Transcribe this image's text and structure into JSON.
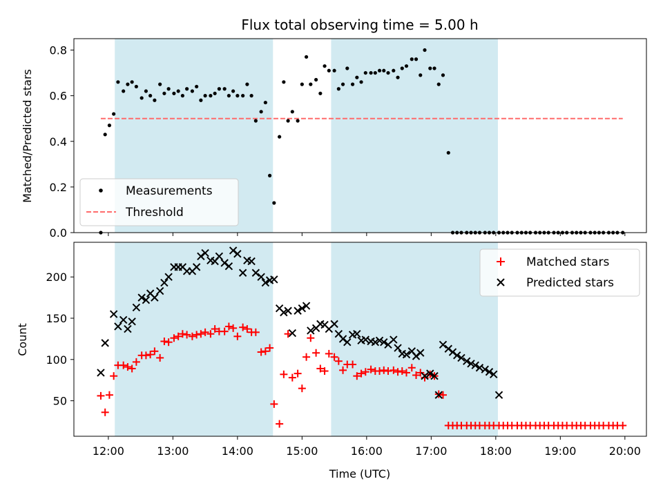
{
  "chart_data": [
    {
      "type": "scatter",
      "title": "Flux total observing time = 5.00 h",
      "xlabel": "",
      "ylabel": "Matched/Predicted stars",
      "xlim": [
        "11:28",
        "20:20"
      ],
      "ylim": [
        0,
        0.85
      ],
      "yticks": [
        0.0,
        0.2,
        0.4,
        0.6,
        0.8
      ],
      "grid": false,
      "legend_position": "lower-left",
      "shaded_intervals": [
        [
          "12:06",
          "14:33"
        ],
        [
          "15:27",
          "18:02"
        ]
      ],
      "shade_color": "#add8e6",
      "threshold": {
        "name": "Threshold",
        "value": 0.5,
        "x_start": "11:53",
        "x_end": "19:58",
        "color": "#ff6b6b"
      },
      "series": [
        {
          "name": "Measurements",
          "color": "#000000",
          "x": [
            "11:53",
            "11:57",
            "12:01",
            "12:05",
            "12:09",
            "12:14",
            "12:18",
            "12:22",
            "12:26",
            "12:31",
            "12:35",
            "12:39",
            "12:43",
            "12:48",
            "12:52",
            "12:56",
            "13:01",
            "13:05",
            "13:09",
            "13:13",
            "13:18",
            "13:22",
            "13:26",
            "13:30",
            "13:35",
            "13:39",
            "13:43",
            "13:48",
            "13:52",
            "13:56",
            "14:00",
            "14:05",
            "14:09",
            "14:13",
            "14:17",
            "14:22",
            "14:26",
            "14:30",
            "14:34",
            "14:39",
            "14:43",
            "14:47",
            "14:51",
            "14:56",
            "15:00",
            "15:04",
            "15:08",
            "15:13",
            "15:17",
            "15:21",
            "15:25",
            "15:30",
            "15:34",
            "15:38",
            "15:42",
            "15:47",
            "15:51",
            "15:55",
            "15:59",
            "16:04",
            "16:08",
            "16:12",
            "16:16",
            "16:20",
            "16:25",
            "16:29",
            "16:33",
            "16:37",
            "16:42",
            "16:46",
            "16:50",
            "16:54",
            "16:59",
            "17:03",
            "17:07",
            "17:11",
            "17:16",
            "17:20",
            "17:24",
            "17:28",
            "17:33",
            "17:37",
            "17:41",
            "17:45",
            "17:50",
            "17:54",
            "17:58",
            "18:03",
            "18:07",
            "18:11",
            "18:15",
            "18:20",
            "18:24",
            "18:28",
            "18:32",
            "18:37",
            "18:41",
            "18:45",
            "18:49",
            "18:54",
            "18:58",
            "19:02",
            "19:06",
            "19:11",
            "19:15",
            "19:19",
            "19:23",
            "19:28",
            "19:32",
            "19:36",
            "19:40",
            "19:45",
            "19:49",
            "19:53",
            "19:58"
          ],
          "y": [
            0.0,
            0.43,
            0.47,
            0.52,
            0.66,
            0.62,
            0.65,
            0.66,
            0.64,
            0.59,
            0.62,
            0.6,
            0.58,
            0.65,
            0.61,
            0.63,
            0.61,
            0.62,
            0.6,
            0.63,
            0.62,
            0.64,
            0.58,
            0.6,
            0.6,
            0.61,
            0.63,
            0.63,
            0.6,
            0.62,
            0.6,
            0.6,
            0.65,
            0.6,
            0.49,
            0.53,
            0.57,
            0.25,
            0.13,
            0.42,
            0.66,
            0.49,
            0.53,
            0.49,
            0.65,
            0.77,
            0.65,
            0.67,
            0.61,
            0.73,
            0.71,
            0.71,
            0.63,
            0.65,
            0.72,
            0.65,
            0.68,
            0.66,
            0.7,
            0.7,
            0.7,
            0.71,
            0.71,
            0.7,
            0.71,
            0.68,
            0.72,
            0.73,
            0.76,
            0.76,
            0.69,
            0.8,
            0.72,
            0.72,
            0.65,
            0.69,
            0.35,
            0.0,
            0.0,
            0.0,
            0.0,
            0.0,
            0.0,
            0.0,
            0.0,
            0.0,
            0.0,
            0.0,
            0.0,
            0.0,
            0.0,
            0.0,
            0.0,
            0.0,
            0.0,
            0.0,
            0.0,
            0.0,
            0.0,
            0.0,
            0.0,
            0.0,
            0.0,
            0.0,
            0.0,
            0.0,
            0.0,
            0.0,
            0.0,
            0.0,
            0.0,
            0.0,
            0.0,
            0.0,
            0.0
          ]
        }
      ]
    },
    {
      "type": "scatter",
      "title": "",
      "xlabel": "Time (UTC)",
      "ylabel": "Count",
      "xlim": [
        "11:28",
        "20:20"
      ],
      "ylim": [
        7,
        242
      ],
      "xticks": [
        "12:00",
        "13:00",
        "14:00",
        "15:00",
        "16:00",
        "17:00",
        "18:00",
        "19:00",
        "20:00"
      ],
      "yticks": [
        50,
        100,
        150,
        200
      ],
      "grid": false,
      "legend_position": "upper-right",
      "shaded_intervals": [
        [
          "12:06",
          "14:33"
        ],
        [
          "15:27",
          "18:02"
        ]
      ],
      "shade_color": "#add8e6",
      "series": [
        {
          "name": "Matched stars",
          "marker": "+",
          "color": "#ff0000",
          "x": [
            "11:53",
            "11:57",
            "12:01",
            "12:05",
            "12:09",
            "12:14",
            "12:18",
            "12:22",
            "12:26",
            "12:31",
            "12:35",
            "12:39",
            "12:43",
            "12:48",
            "12:52",
            "12:56",
            "13:01",
            "13:05",
            "13:09",
            "13:13",
            "13:18",
            "13:22",
            "13:26",
            "13:30",
            "13:35",
            "13:39",
            "13:43",
            "13:48",
            "13:52",
            "13:56",
            "14:00",
            "14:05",
            "14:09",
            "14:13",
            "14:17",
            "14:22",
            "14:26",
            "14:30",
            "14:34",
            "14:39",
            "14:43",
            "14:47",
            "14:51",
            "14:56",
            "15:00",
            "15:04",
            "15:08",
            "15:13",
            "15:17",
            "15:21",
            "15:25",
            "15:30",
            "15:34",
            "15:38",
            "15:42",
            "15:47",
            "15:51",
            "15:55",
            "15:59",
            "16:04",
            "16:08",
            "16:12",
            "16:16",
            "16:20",
            "16:25",
            "16:29",
            "16:33",
            "16:37",
            "16:42",
            "16:46",
            "16:50",
            "16:54",
            "16:59",
            "17:03",
            "17:07",
            "17:11",
            "17:16",
            "17:20",
            "17:24",
            "17:28",
            "17:33",
            "17:37",
            "17:41",
            "17:45",
            "17:50",
            "17:54",
            "17:58",
            "18:03",
            "18:07",
            "18:11",
            "18:15",
            "18:20",
            "18:24",
            "18:28",
            "18:32",
            "18:37",
            "18:41",
            "18:45",
            "18:49",
            "18:54",
            "18:58",
            "19:02",
            "19:06",
            "19:11",
            "19:15",
            "19:19",
            "19:23",
            "19:28",
            "19:32",
            "19:36",
            "19:40",
            "19:45",
            "19:49",
            "19:53",
            "19:58"
          ],
          "y": [
            56,
            36,
            57,
            80,
            93,
            93,
            91,
            89,
            97,
            105,
            105,
            106,
            110,
            102,
            122,
            121,
            126,
            128,
            131,
            130,
            128,
            130,
            131,
            133,
            131,
            137,
            134,
            134,
            140,
            138,
            128,
            139,
            137,
            133,
            133,
            109,
            110,
            114,
            46,
            22,
            82,
            131,
            78,
            83,
            65,
            103,
            126,
            108,
            89,
            86,
            107,
            103,
            98,
            87,
            94,
            94,
            80,
            83,
            85,
            88,
            86,
            86,
            87,
            86,
            87,
            85,
            86,
            84,
            90,
            81,
            84,
            78,
            82,
            80,
            58,
            57,
            20,
            20,
            20,
            20,
            20,
            20,
            20,
            20,
            20,
            20,
            20,
            20,
            20,
            20,
            20,
            20,
            20,
            20,
            20,
            20,
            20,
            20,
            20,
            20,
            20,
            20,
            20,
            20,
            20,
            20,
            20,
            20,
            20,
            20,
            20,
            20,
            20,
            20,
            20
          ]
        },
        {
          "name": "Predicted stars",
          "marker": "x",
          "color": "#000000",
          "x": [
            "11:53",
            "11:57",
            "12:05",
            "12:09",
            "12:14",
            "12:18",
            "12:22",
            "12:26",
            "12:31",
            "12:35",
            "12:39",
            "12:43",
            "12:48",
            "12:52",
            "12:56",
            "13:01",
            "13:05",
            "13:09",
            "13:13",
            "13:18",
            "13:22",
            "13:26",
            "13:30",
            "13:35",
            "13:39",
            "13:43",
            "13:48",
            "13:52",
            "13:56",
            "14:00",
            "14:05",
            "14:09",
            "14:13",
            "14:17",
            "14:22",
            "14:26",
            "14:30",
            "14:34",
            "14:39",
            "14:43",
            "14:47",
            "14:51",
            "14:56",
            "15:00",
            "15:04",
            "15:08",
            "15:13",
            "15:17",
            "15:21",
            "15:25",
            "15:30",
            "15:34",
            "15:38",
            "15:42",
            "15:47",
            "15:51",
            "15:55",
            "15:59",
            "16:04",
            "16:08",
            "16:12",
            "16:16",
            "16:20",
            "16:25",
            "16:29",
            "16:33",
            "16:37",
            "16:42",
            "16:46",
            "16:50",
            "16:54",
            "16:59",
            "17:03",
            "17:07",
            "17:11",
            "17:16",
            "17:20",
            "17:24",
            "17:28",
            "17:33",
            "17:37",
            "17:41",
            "17:45",
            "17:50",
            "17:54",
            "17:58",
            "18:03"
          ],
          "y": [
            84,
            120,
            155,
            140,
            148,
            137,
            146,
            163,
            175,
            172,
            180,
            175,
            183,
            193,
            200,
            212,
            212,
            212,
            207,
            207,
            212,
            225,
            229,
            220,
            219,
            225,
            217,
            213,
            232,
            228,
            205,
            220,
            219,
            205,
            200,
            193,
            196,
            197,
            162,
            157,
            159,
            132,
            159,
            162,
            165,
            135,
            138,
            143,
            142,
            137,
            143,
            131,
            125,
            121,
            130,
            131,
            123,
            124,
            122,
            121,
            123,
            121,
            118,
            124,
            114,
            107,
            106,
            110,
            104,
            108,
            80,
            83,
            80,
            57,
            118,
            113,
            109,
            105,
            102,
            98,
            95,
            93,
            90,
            88,
            85,
            82,
            57
          ]
        }
      ]
    }
  ]
}
